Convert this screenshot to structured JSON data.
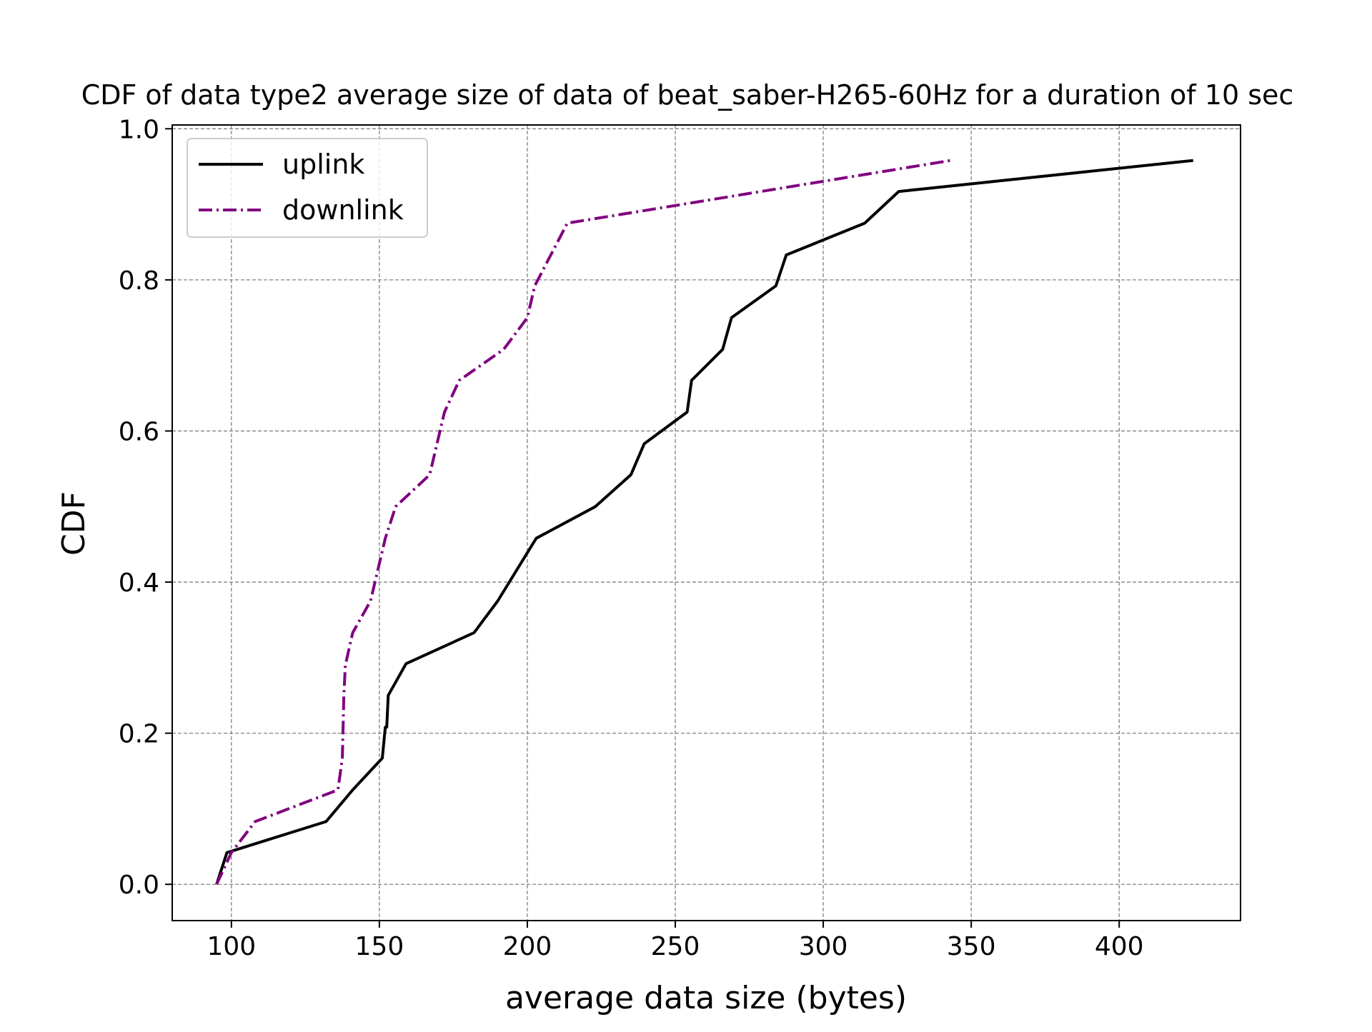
{
  "chart_data": {
    "type": "line",
    "title": "CDF of data type2 average size of data of beat_saber-H265-60Hz for a duration of 10 sec",
    "xlabel": "average data size (bytes)",
    "ylabel": "CDF",
    "xlim": [
      80,
      441
    ],
    "ylim": [
      -0.048,
      1.005
    ],
    "xticks": [
      100,
      150,
      200,
      250,
      300,
      350,
      400
    ],
    "yticks": [
      0.0,
      0.2,
      0.4,
      0.6,
      0.8,
      1.0
    ],
    "xtick_labels": [
      "100",
      "150",
      "200",
      "250",
      "300",
      "350",
      "400"
    ],
    "ytick_labels": [
      "0.0",
      "0.2",
      "0.4",
      "0.6",
      "0.8",
      "1.0"
    ],
    "grid": true,
    "legend_position": "top-left",
    "series": [
      {
        "name": "uplink",
        "color": "#000000",
        "style": "solid",
        "x": [
          95,
          98.5,
          132,
          141,
          151,
          152,
          152.5,
          153,
          159,
          182,
          190,
          203,
          223,
          235,
          239.5,
          254,
          255.5,
          266,
          269,
          284,
          287.5,
          314,
          325.5,
          425
        ],
        "y": [
          0.0,
          0.042,
          0.083,
          0.125,
          0.167,
          0.208,
          0.208,
          0.25,
          0.292,
          0.333,
          0.375,
          0.458,
          0.5,
          0.542,
          0.583,
          0.625,
          0.667,
          0.708,
          0.75,
          0.792,
          0.833,
          0.875,
          0.917,
          0.958
        ]
      },
      {
        "name": "downlink",
        "color": "#800080",
        "style": "dashdot",
        "x": [
          95,
          100,
          108,
          136,
          137.5,
          138,
          138.5,
          141,
          147,
          152,
          155.5,
          167,
          172,
          177,
          192,
          200,
          202.5,
          213.5,
          343
        ],
        "y": [
          0.0,
          0.042,
          0.083,
          0.125,
          0.167,
          0.25,
          0.29,
          0.333,
          0.375,
          0.458,
          0.5,
          0.542,
          0.625,
          0.667,
          0.708,
          0.75,
          0.792,
          0.875,
          0.958
        ]
      }
    ]
  }
}
